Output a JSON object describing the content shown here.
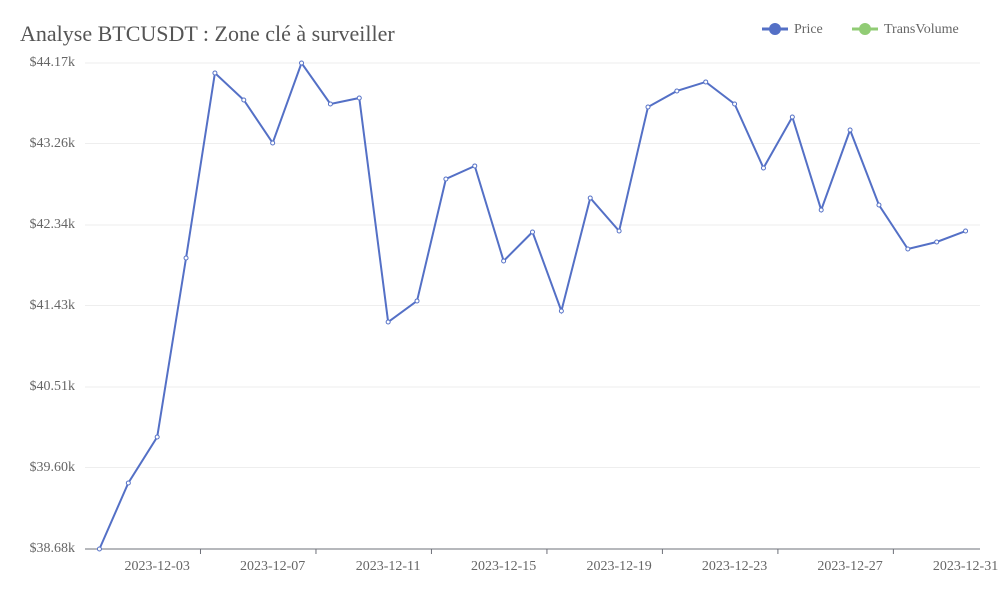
{
  "chart_data": {
    "type": "line",
    "title": "Analyse BTCUSDT : Zone clé à surveiller",
    "categories": [
      null,
      null,
      "2023-12-03",
      null,
      null,
      null,
      "2023-12-07",
      null,
      null,
      null,
      "2023-12-11",
      null,
      null,
      null,
      "2023-12-15",
      null,
      null,
      null,
      "2023-12-19",
      null,
      null,
      null,
      "2023-12-23",
      null,
      null,
      null,
      "2023-12-27",
      null,
      null,
      null,
      "2023-12-31"
    ],
    "series": [
      {
        "name": "Price",
        "color": "#5470c6",
        "values": [
          38680,
          39426,
          39945,
          41967,
          44057,
          43752,
          43267,
          44170,
          43707,
          43775,
          41244,
          41482,
          42860,
          43007,
          41934,
          42261,
          41369,
          42645,
          42272,
          43673,
          43854,
          43956,
          43707,
          42984,
          43560,
          42510,
          43413,
          42566,
          42069,
          42148,
          42272
        ]
      },
      {
        "name": "TransVolume",
        "color": "#91cc75",
        "values": [
          null,
          null,
          null,
          null,
          null,
          null,
          null,
          null,
          null,
          null,
          null,
          null,
          null,
          null,
          null,
          null,
          null,
          null,
          null,
          null,
          null,
          null,
          null,
          null,
          null,
          null,
          null,
          null,
          null,
          null,
          null
        ]
      }
    ],
    "ylim": [
      38680,
      44170
    ],
    "yticks": [
      {
        "value": 38680,
        "label": "$38.68k"
      },
      {
        "value": 39600,
        "label": "$39.60k"
      },
      {
        "value": 40510,
        "label": "$40.51k"
      },
      {
        "value": 41430,
        "label": "$41.43k"
      },
      {
        "value": 42340,
        "label": "$42.34k"
      },
      {
        "value": 43260,
        "label": "$43.26k"
      },
      {
        "value": 44170,
        "label": "$44.17k"
      }
    ],
    "grid": true,
    "legend": "top-right"
  }
}
